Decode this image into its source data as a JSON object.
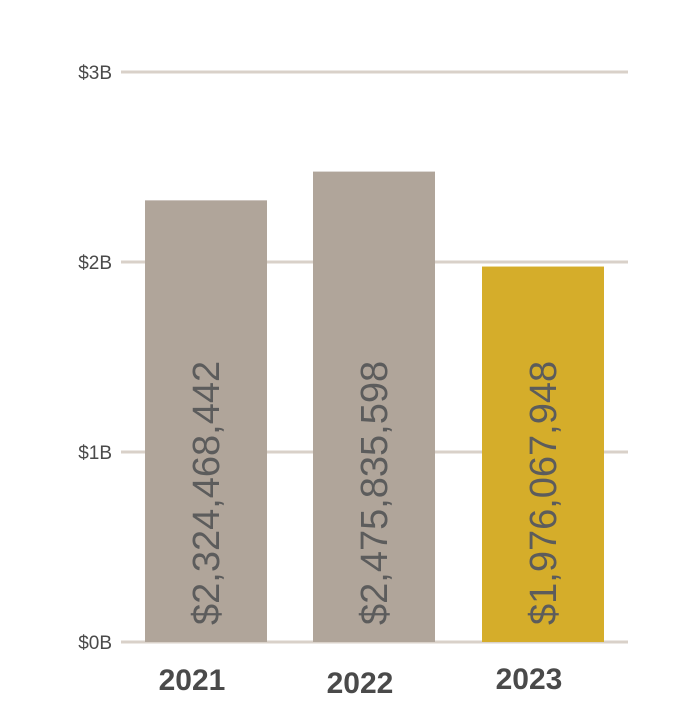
{
  "chart_data": {
    "type": "bar",
    "title": "",
    "xlabel": "",
    "ylabel": "",
    "categories": [
      "2021",
      "2022",
      "2023"
    ],
    "values": [
      2324468442,
      2475835598,
      1976067948
    ],
    "data_labels": [
      "$2,324,468,442",
      "$2,475,835,598",
      "$1,976,067,948"
    ],
    "yticks": [
      0,
      1000000000,
      2000000000,
      3000000000
    ],
    "ytick_labels": [
      "$0B",
      "$1B",
      "$2B",
      "$3B"
    ],
    "ylim": [
      0,
      3000000000
    ],
    "grid": true,
    "colors": [
      "#b0a59a",
      "#b0a59a",
      "#d5ad2a"
    ],
    "grid_color": "#d9d1c9"
  }
}
